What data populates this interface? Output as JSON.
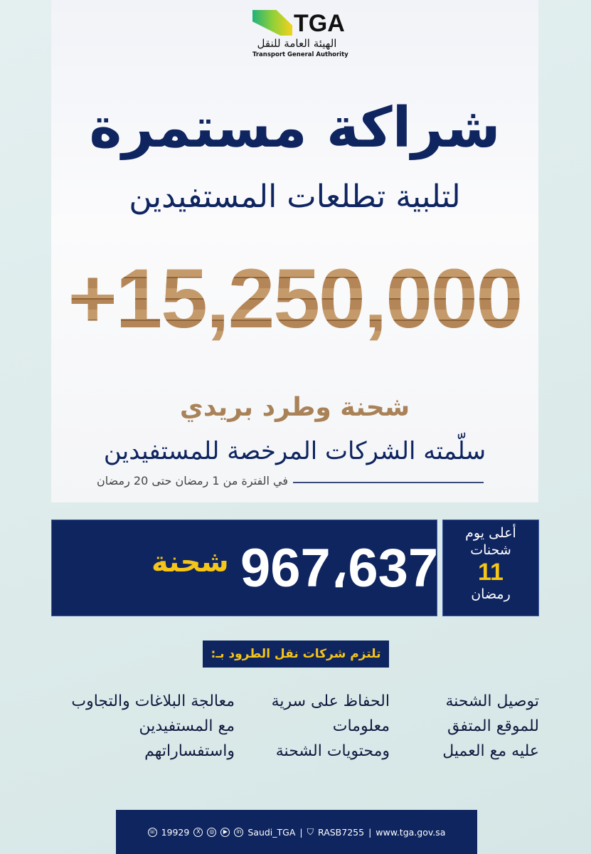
{
  "logo": {
    "brand": "TGA",
    "arabic": "الهيئة العامة للنقل",
    "english": "Transport General Authority"
  },
  "headline": {
    "title": "شراكة مستمرة",
    "subtitle": "لتلبية تطلعات المستفيدين"
  },
  "total": {
    "value": "+15,250,000",
    "label": "شحنة وطرد بريدي",
    "description": "سلّمته الشركات المرخصة للمستفيدين",
    "period": "في الفترة من 1 رمضان حتى 20 رمضان"
  },
  "peak": {
    "value": "967،637",
    "unit": "شحنة",
    "title_line1": "أعلى يوم",
    "title_line2": "شحنات",
    "day": "11",
    "month": "رمضان"
  },
  "commitments": {
    "heading": "تلتزم شركات نقل الطرود بـ:",
    "items": [
      [
        "توصيل الشحنة",
        "للموقع المتفق",
        "عليه مع العميل"
      ],
      [
        "الحفاظ على سرية",
        "معلومات",
        "ومحتويات الشحنة"
      ],
      [
        "معالجة البلاغات والتجاوب",
        "مع المستفيدين",
        "واستفساراتهم"
      ]
    ]
  },
  "footer": {
    "phone": "19929",
    "social_handle": "Saudi_TGA",
    "location_code": "RASB7255",
    "website": "www.tga.gov.sa",
    "icons": [
      "phone-icon",
      "x-icon",
      "instagram-icon",
      "youtube-icon",
      "linkedin-icon",
      "location-icon"
    ]
  },
  "colors": {
    "navy": "#0f2560",
    "gold": "#f5c518",
    "cardboard": "#a77b4f"
  }
}
